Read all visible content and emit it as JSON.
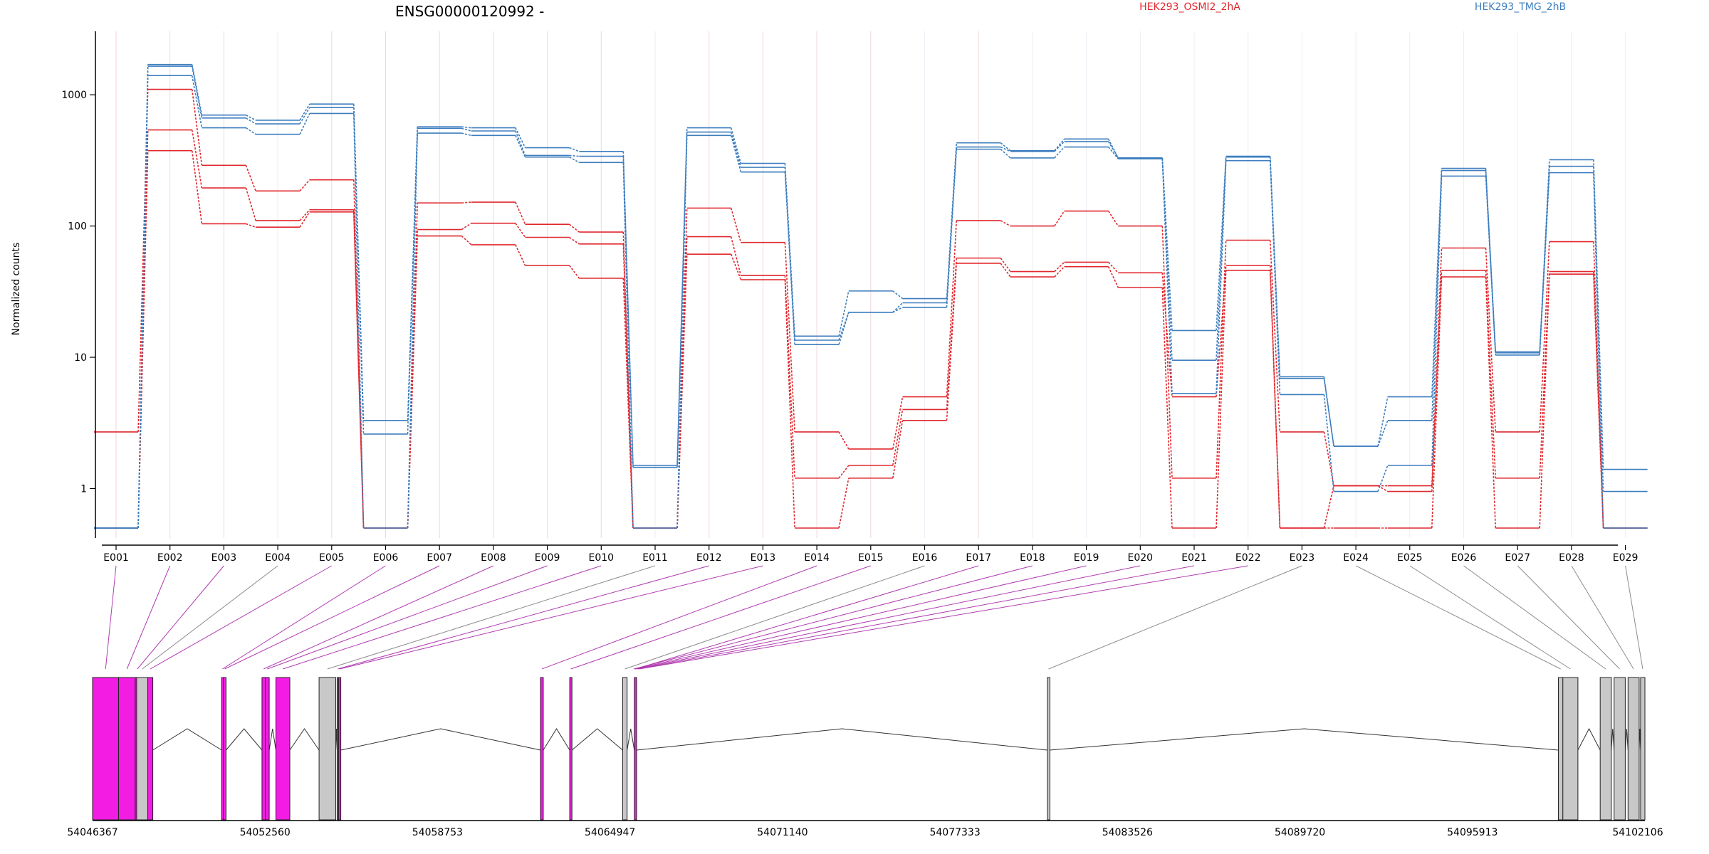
{
  "chart_data": {
    "type": "line",
    "title": "ENSG00000120992 -",
    "ylabel": "Normalized counts",
    "y_scale": "log",
    "ylim": [
      0.5,
      2200
    ],
    "yticks": [
      1,
      10,
      100,
      1000
    ],
    "ytick_labels": [
      "1",
      "10",
      "100",
      "1000"
    ],
    "categories": [
      "E001",
      "E002",
      "E003",
      "E004",
      "E005",
      "E006",
      "E007",
      "E008",
      "E009",
      "E010",
      "E011",
      "E012",
      "E013",
      "E014",
      "E015",
      "E016",
      "E017",
      "E018",
      "E019",
      "E020",
      "E021",
      "E022",
      "E023",
      "E024",
      "E025",
      "E026",
      "E027",
      "E028",
      "E029"
    ],
    "legend": [
      {
        "label": "HEK293_OSMI2_2hA",
        "color": "#e0282e"
      },
      {
        "label": "HEK293_TMG_2hB",
        "color": "#3d7ebf"
      }
    ],
    "series": [
      {
        "group": "HEK293_OSMI2_2hA",
        "color": "#e0282e",
        "values": [
          2.7,
          1100,
          290,
          185,
          225,
          0.5,
          150,
          152,
          103,
          90,
          0.5,
          137,
          75,
          2.7,
          2.0,
          5.0,
          110,
          100,
          130,
          100,
          1.2,
          78,
          2.7,
          1.05,
          1.05,
          68,
          2.7,
          76,
          0.5
        ]
      },
      {
        "group": "HEK293_OSMI2_2hA",
        "color": "#e0282e",
        "values": [
          0.5,
          540,
          195,
          110,
          133,
          0.5,
          94,
          105,
          82,
          73,
          0.5,
          83,
          42,
          1.2,
          1.5,
          4.0,
          57,
          45,
          53,
          44,
          5.0,
          50,
          0.5,
          1.05,
          0.95,
          46,
          1.2,
          45,
          0.5
        ]
      },
      {
        "group": "HEK293_OSMI2_2hA",
        "color": "#e0282e",
        "values": [
          0.5,
          375,
          104,
          98,
          128,
          0.5,
          84,
          72,
          50,
          40,
          0.5,
          61,
          39,
          0.5,
          1.2,
          3.3,
          52,
          41,
          49,
          34,
          0.5,
          46,
          0.5,
          0.5,
          0.5,
          41,
          0.5,
          43,
          0.5
        ]
      },
      {
        "group": "HEK293_TMG_2hB",
        "color": "#3d7ebf",
        "values": [
          0.5,
          1700,
          700,
          640,
          850,
          3.3,
          570,
          560,
          395,
          370,
          1.5,
          560,
          300,
          14.5,
          32,
          28,
          430,
          375,
          460,
          330,
          16,
          340,
          7.1,
          2.1,
          5.0,
          275,
          11,
          320,
          1.4
        ]
      },
      {
        "group": "HEK293_TMG_2hB",
        "color": "#3d7ebf",
        "values": [
          0.5,
          1650,
          665,
          600,
          800,
          2.6,
          555,
          530,
          345,
          340,
          1.45,
          520,
          280,
          13.5,
          22,
          26,
          400,
          370,
          440,
          330,
          9.5,
          335,
          6.9,
          2.1,
          3.3,
          265,
          10.8,
          285,
          0.95
        ]
      },
      {
        "group": "HEK293_TMG_2hB",
        "color": "#3d7ebf",
        "values": [
          0.5,
          1400,
          560,
          500,
          720,
          0.5,
          510,
          490,
          335,
          305,
          0.5,
          490,
          258,
          12.5,
          22,
          24,
          385,
          330,
          400,
          325,
          5.3,
          315,
          5.2,
          0.95,
          1.5,
          240,
          10.4,
          255,
          0.5
        ]
      }
    ],
    "gene_model": {
      "genomic_ticks": [
        "54046367",
        "54052560",
        "54058753",
        "54064947",
        "54071140",
        "54077333",
        "54083526",
        "54089720",
        "54095913",
        "54102106"
      ],
      "axis_range": [
        54046367,
        54102106
      ],
      "colors": {
        "significant": "#f21ce3",
        "other": "#c8c8c8",
        "connector_significant": "#b03cb0",
        "connector_other": "#8c8c8c"
      },
      "exons": [
        {
          "id": "E001",
          "start": 54046367,
          "end": 54047300,
          "significant": true
        },
        {
          "id": "E002",
          "start": 54047300,
          "end": 54047900,
          "significant": true
        },
        {
          "id": "E003",
          "start": 54047900,
          "end": 54048050,
          "significant": true
        },
        {
          "id": "E004",
          "start": 54047950,
          "end": 54048350,
          "significant": false
        },
        {
          "id": "E005",
          "start": 54048350,
          "end": 54048530,
          "significant": true
        },
        {
          "id": "E006",
          "start": 54051000,
          "end": 54051060,
          "significant": true
        },
        {
          "id": "E007",
          "start": 54051060,
          "end": 54051160,
          "significant": true
        },
        {
          "id": "E008",
          "start": 54052450,
          "end": 54052570,
          "significant": true
        },
        {
          "id": "E009",
          "start": 54052570,
          "end": 54052710,
          "significant": true
        },
        {
          "id": "E010",
          "start": 54052950,
          "end": 54053450,
          "significant": true
        },
        {
          "id": "E011",
          "start": 54054500,
          "end": 54055100,
          "significant": false
        },
        {
          "id": "E012",
          "start": 54055150,
          "end": 54055200,
          "significant": true
        },
        {
          "id": "E013",
          "start": 54055200,
          "end": 54055280,
          "significant": true
        },
        {
          "id": "E014",
          "start": 54062450,
          "end": 54062550,
          "significant": true
        },
        {
          "id": "E015",
          "start": 54063500,
          "end": 54063580,
          "significant": true
        },
        {
          "id": "E016",
          "start": 54065400,
          "end": 54065560,
          "significant": false
        },
        {
          "id": "E017",
          "start": 54065820,
          "end": 54065900,
          "significant": true
        },
        {
          "id": "E023",
          "start": 54080650,
          "end": 54080740,
          "significant": false
        },
        {
          "id": "E024",
          "start": 54099000,
          "end": 54099160,
          "significant": false
        },
        {
          "id": "E025",
          "start": 54099160,
          "end": 54099700,
          "significant": false
        },
        {
          "id": "E026",
          "start": 54100500,
          "end": 54100900,
          "significant": false
        },
        {
          "id": "E027",
          "start": 54101000,
          "end": 54101400,
          "significant": false
        },
        {
          "id": "E028",
          "start": 54101500,
          "end": 54101900,
          "significant": false
        },
        {
          "id": "E029",
          "start": 54101950,
          "end": 54102106,
          "significant": false
        }
      ]
    }
  }
}
